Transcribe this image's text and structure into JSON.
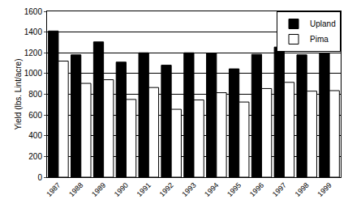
{
  "chart_data": {
    "type": "bar",
    "y_label": "Yield (lbs. Lint/acre)",
    "categories": [
      "1987",
      "1988",
      "1989",
      "1990",
      "1991",
      "1992",
      "1993",
      "1994",
      "1995",
      "1996",
      "1997",
      "1998",
      "1999"
    ],
    "series": [
      {
        "name": "Upland",
        "color": "#000000",
        "values": [
          1410,
          1180,
          1305,
          1110,
          1200,
          1080,
          1200,
          1195,
          1045,
          1185,
          1255,
          1180,
          1195
        ]
      },
      {
        "name": "Pima",
        "color": "#ffffff",
        "values": [
          1120,
          905,
          940,
          750,
          865,
          655,
          745,
          815,
          725,
          855,
          915,
          830,
          835
        ]
      }
    ],
    "ylim": [
      0,
      1600
    ],
    "yticks": [
      0,
      200,
      400,
      600,
      800,
      1000,
      1200,
      1400,
      1600
    ],
    "grid": true,
    "legend": "top right"
  }
}
